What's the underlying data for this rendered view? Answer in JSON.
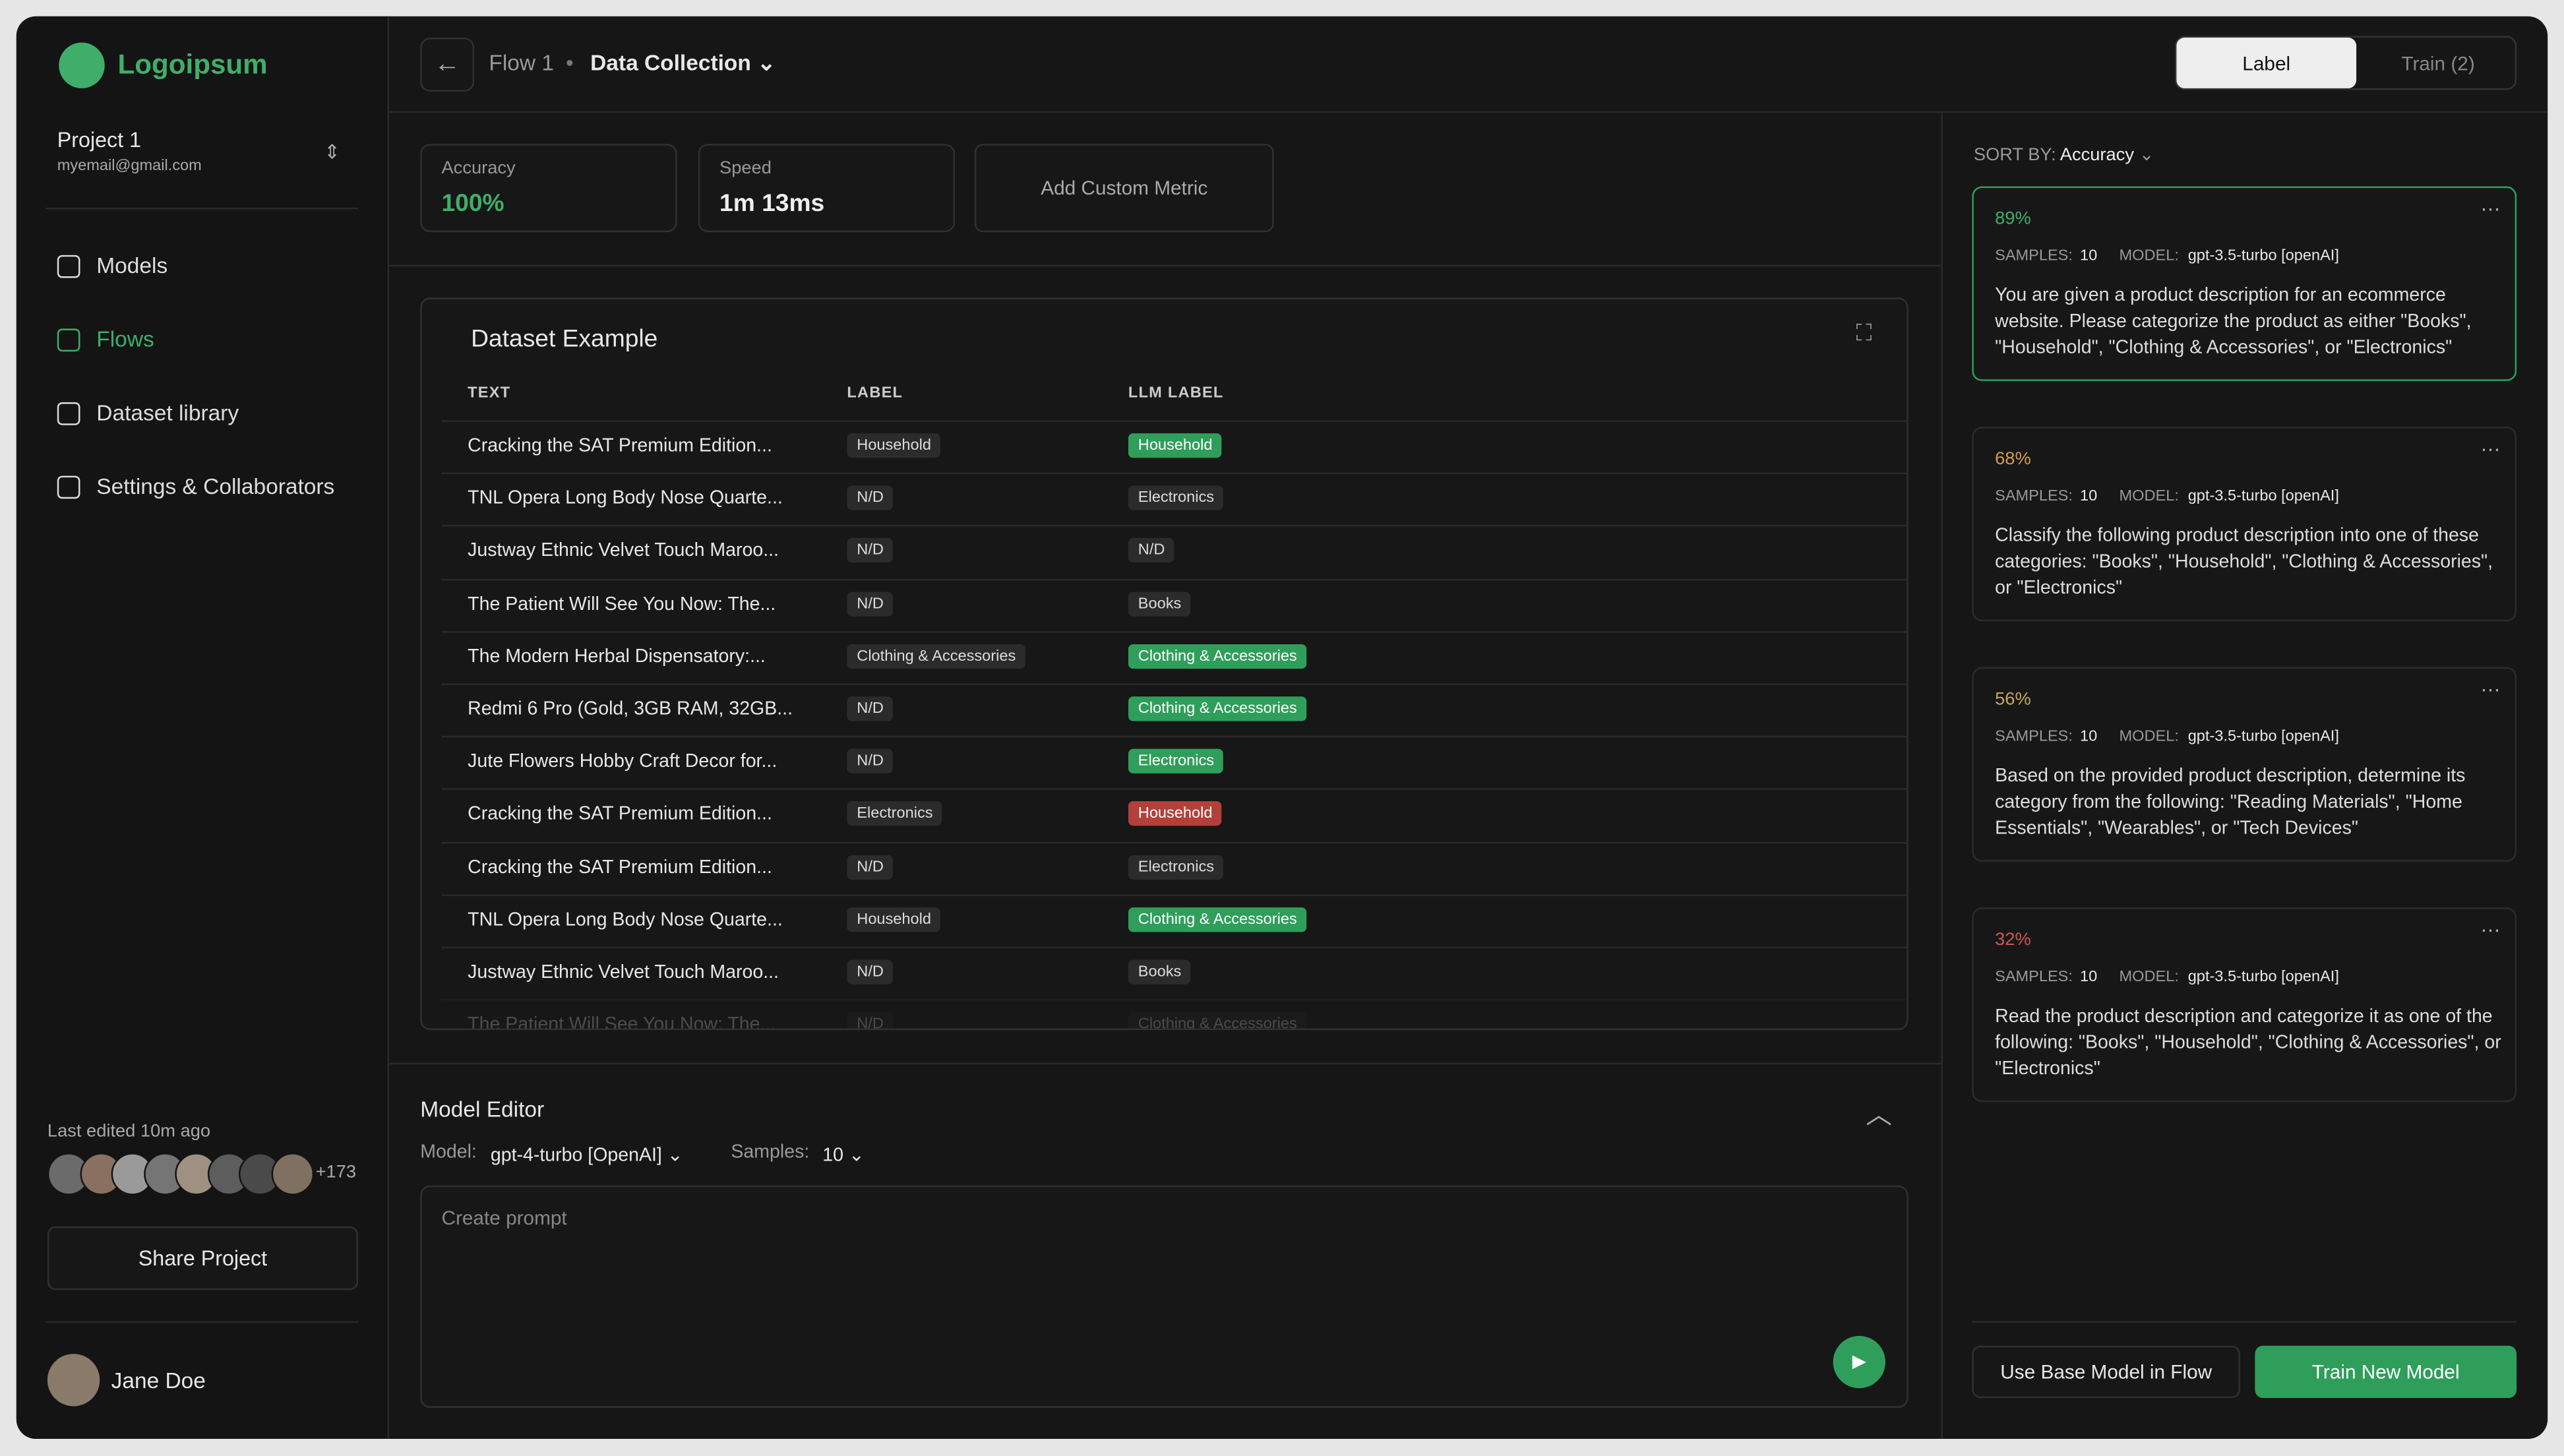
{
  "sidebar": {
    "brand": "Logoipsum",
    "project": {
      "name": "Project 1",
      "email": "myemail@gmail.com"
    },
    "nav": [
      {
        "label": "Models",
        "active": false
      },
      {
        "label": "Flows",
        "active": true
      },
      {
        "label": "Dataset library",
        "active": false
      },
      {
        "label": "Settings & Collaborators",
        "active": false
      }
    ],
    "last_edited": "Last edited 10m ago",
    "more_collaborators": "+173",
    "share": "Share Project",
    "user": "Jane Doe"
  },
  "header": {
    "flow": "Flow 1",
    "stage": "Data Collection",
    "tabs": [
      "Label",
      "Train (2)"
    ]
  },
  "metrics": [
    {
      "label": "Accuracy",
      "value": "100%"
    },
    {
      "label": "Speed",
      "value": "1m 13ms"
    }
  ],
  "add_metric": "Add Custom Metric",
  "dataset": {
    "title": "Dataset Example",
    "columns": [
      "TEXT",
      "LABEL",
      "LLM LABEL"
    ],
    "rows": [
      [
        "Cracking the SAT Premium Edition...",
        "Household",
        "Household",
        "green"
      ],
      [
        "TNL Opera Long Body Nose Quarte...",
        "N/D",
        "Electronics",
        "gray"
      ],
      [
        "Justway Ethnic Velvet Touch Maroo...",
        "N/D",
        "N/D",
        "gray"
      ],
      [
        "The Patient Will See You Now: The...",
        "N/D",
        "Books",
        "gray"
      ],
      [
        "The Modern Herbal Dispensatory:...",
        "Clothing & Accessories",
        "Clothing & Accessories",
        "green"
      ],
      [
        "Redmi 6 Pro (Gold, 3GB RAM, 32GB...",
        "N/D",
        "Clothing & Accessories",
        "green"
      ],
      [
        "Jute Flowers Hobby Craft Decor for...",
        "N/D",
        "Electronics",
        "green"
      ],
      [
        "Cracking the SAT Premium Edition...",
        "Electronics",
        "Household",
        "red"
      ],
      [
        "Cracking the SAT Premium Edition...",
        "N/D",
        "Electronics",
        "gray"
      ],
      [
        "TNL Opera Long Body Nose Quarte...",
        "Household",
        "Clothing & Accessories",
        "green"
      ],
      [
        "Justway Ethnic Velvet Touch Maroo...",
        "N/D",
        "Books",
        "gray"
      ],
      [
        "The Patient Will See You Now: The...",
        "N/D",
        "Clothing & Accessories",
        "gray"
      ]
    ]
  },
  "editor": {
    "title": "Model Editor",
    "model_label": "Model:",
    "model": "gpt-4-turbo [OpenAI]",
    "samples_label": "Samples:",
    "samples": "10",
    "placeholder": "Create prompt"
  },
  "results": {
    "sort_label": "SORT BY:",
    "sort_value": "Accuracy",
    "cards": [
      {
        "score": "89%",
        "color": "#3fae6a",
        "samples_label": "SAMPLES:",
        "samples": "10",
        "model_label": "MODEL:",
        "model": "gpt-3.5-turbo [openAI]",
        "prompt": "You are given a product description for an ecommerce website. Please categorize the product as either \"Books\", \"Household\", \"Clothing & Accessories\", or \"Electronics\""
      },
      {
        "score": "68%",
        "color": "#d59a55",
        "samples_label": "SAMPLES:",
        "samples": "10",
        "model_label": "MODEL:",
        "model": "gpt-3.5-turbo [openAI]",
        "prompt": "Classify the following product description into one of these categories: \"Books\", \"Household\", \"Clothing & Accessories\", or \"Electronics\""
      },
      {
        "score": "56%",
        "color": "#c9a85a",
        "samples_label": "SAMPLES:",
        "samples": "10",
        "model_label": "MODEL:",
        "model": "gpt-3.5-turbo [openAI]",
        "prompt": "Based on the provided product description, determine its category from the following: \"Reading Materials\", \"Home Essentials\", \"Wearables\", or \"Tech Devices\""
      },
      {
        "score": "32%",
        "color": "#d0564f",
        "samples_label": "SAMPLES:",
        "samples": "10",
        "model_label": "MODEL:",
        "model": "gpt-3.5-turbo [openAI]",
        "prompt": "Read the product description and categorize it as one of the following: \"Books\", \"Household\", \"Clothing & Accessories\", or \"Electronics\""
      }
    ]
  },
  "buttons": {
    "base": "Use Base Model in Flow",
    "train": "Train New Model"
  }
}
